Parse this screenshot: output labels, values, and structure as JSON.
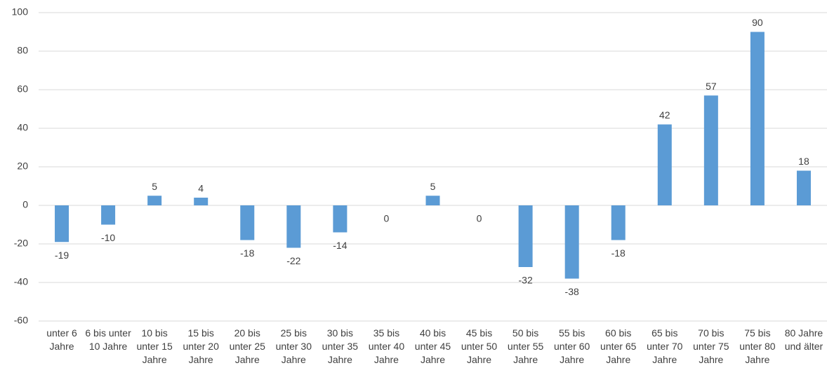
{
  "chart_data": {
    "type": "bar",
    "categories": [
      "unter 6 Jahre",
      "6 bis unter 10 Jahre",
      "10 bis unter 15 Jahre",
      "15 bis unter 20 Jahre",
      "20 bis unter 25 Jahre",
      "25 bis unter 30 Jahre",
      "30 bis unter 35 Jahre",
      "35 bis unter 40 Jahre",
      "40 bis unter 45 Jahre",
      "45 bis unter 50 Jahre",
      "50 bis unter 55 Jahre",
      "55 bis unter 60 Jahre",
      "60 bis unter 65 Jahre",
      "65 bis unter 70 Jahre",
      "70 bis unter 75 Jahre",
      "75 bis unter 80 Jahre",
      "80 Jahre und älter"
    ],
    "values": [
      -19,
      -10,
      5,
      4,
      -18,
      -22,
      -14,
      0,
      5,
      0,
      -32,
      -38,
      -18,
      42,
      57,
      90,
      18
    ],
    "color": "#5b9bd5",
    "ylim": [
      -60,
      100
    ],
    "yticks": [
      -60,
      -40,
      -20,
      0,
      20,
      40,
      60,
      80,
      100
    ],
    "grid": true
  }
}
